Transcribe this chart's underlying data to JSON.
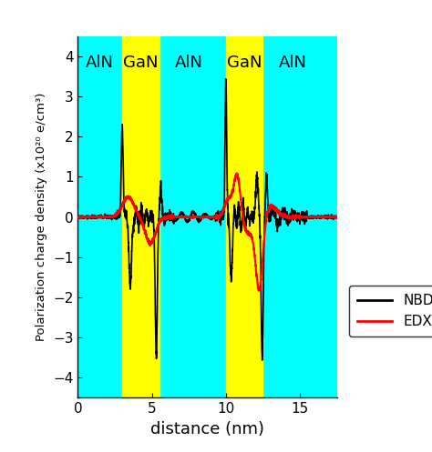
{
  "xlim": [
    0,
    17.5
  ],
  "ylim": [
    -4.5,
    4.5
  ],
  "yticks": [
    -4,
    -3,
    -2,
    -1,
    0,
    1,
    2,
    3,
    4
  ],
  "xticks": [
    0,
    5,
    10,
    15
  ],
  "xlabel": "distance (nm)",
  "ylabel": "Polarization charge density (x10²⁰ e/cm³)",
  "background_color": "#00FFFF",
  "figure_background": "#FFFFFF",
  "gan_color": "#FFFF00",
  "aln_label_color": "#000000",
  "regions": [
    {
      "label": "AlN",
      "x_center": 1.5,
      "is_gan": false
    },
    {
      "label": "GaN",
      "x_start": 3.0,
      "x_end": 5.5,
      "x_center": 4.25,
      "is_gan": true
    },
    {
      "label": "AlN",
      "x_center": 7.5,
      "is_gan": false
    },
    {
      "label": "GaN",
      "x_start": 10.0,
      "x_end": 12.5,
      "x_center": 11.25,
      "is_gan": true
    },
    {
      "label": "AlN",
      "x_center": 14.5,
      "is_gan": false
    }
  ],
  "nbd_color": "#000000",
  "edx_color": "#FF0000",
  "nbd_linewidth": 1.2,
  "edx_linewidth": 1.5,
  "legend_labels": [
    "NBD",
    "EDX"
  ],
  "label_fontsize": 13,
  "tick_fontsize": 11
}
